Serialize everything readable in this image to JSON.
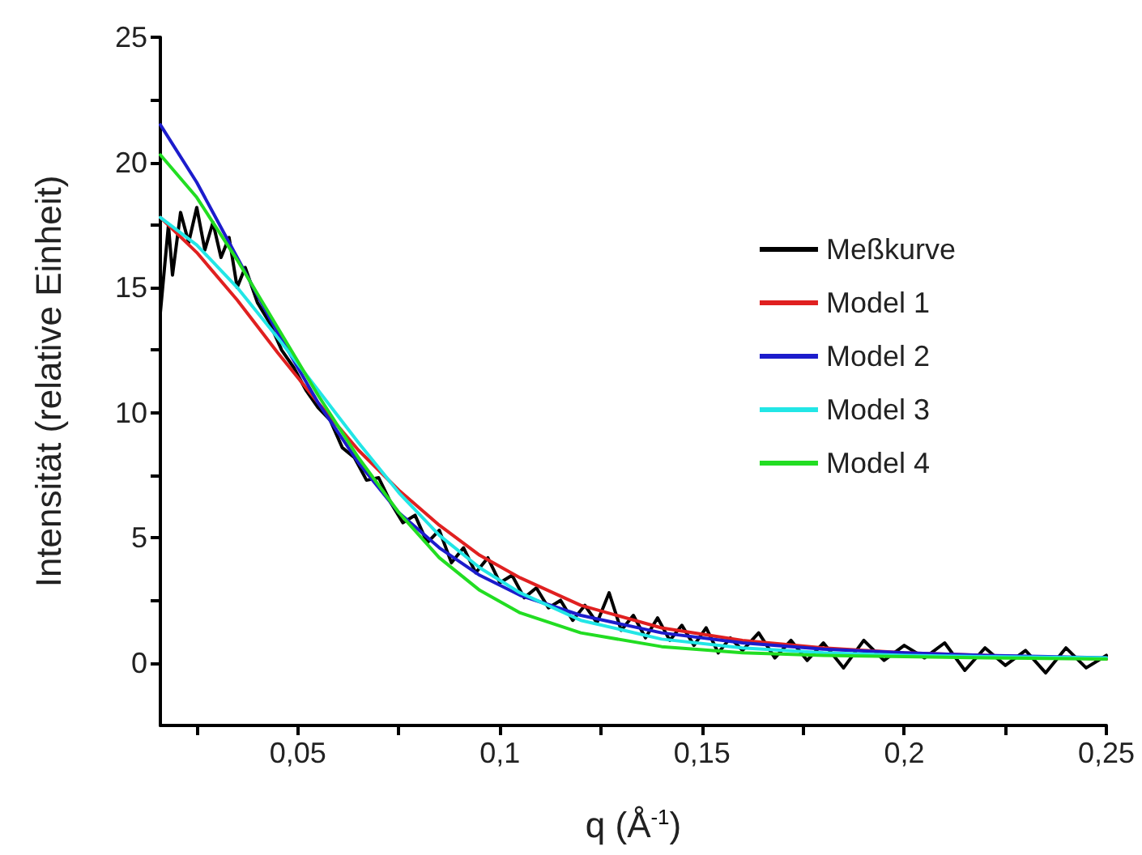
{
  "chart_data": {
    "type": "line",
    "xlabel": "q (Å$^{-1}$)",
    "ylabel": "Intensität (relative Einheit)",
    "xlim": [
      0.016,
      0.25
    ],
    "ylim": [
      -2.5,
      25
    ],
    "xticks": [
      {
        "value": 0.025,
        "label": null
      },
      {
        "value": 0.05,
        "label": "0,05"
      },
      {
        "value": 0.075,
        "label": null
      },
      {
        "value": 0.1,
        "label": "0,1"
      },
      {
        "value": 0.125,
        "label": null
      },
      {
        "value": 0.15,
        "label": "0,15"
      },
      {
        "value": 0.175,
        "label": null
      },
      {
        "value": 0.2,
        "label": "0,2"
      },
      {
        "value": 0.225,
        "label": null
      },
      {
        "value": 0.25,
        "label": "0,25"
      }
    ],
    "yticks": [
      0,
      {
        "value": 2.5,
        "label": null
      },
      5,
      {
        "value": 7.5,
        "label": null
      },
      10,
      {
        "value": 12.5,
        "label": null
      },
      15,
      {
        "value": 17.5,
        "label": null
      },
      20,
      {
        "value": 22.5,
        "label": null
      },
      25
    ],
    "grid": false,
    "legend": "right",
    "marker": "none",
    "line_style": "solid",
    "series": [
      {
        "name": "Meßkurve",
        "color": "#000000",
        "x": [
          0.016,
          0.018,
          0.019,
          0.021,
          0.023,
          0.025,
          0.027,
          0.029,
          0.031,
          0.033,
          0.035,
          0.037,
          0.04,
          0.043,
          0.046,
          0.049,
          0.052,
          0.055,
          0.058,
          0.061,
          0.064,
          0.067,
          0.07,
          0.073,
          0.076,
          0.079,
          0.082,
          0.085,
          0.088,
          0.091,
          0.094,
          0.097,
          0.1,
          0.103,
          0.106,
          0.109,
          0.112,
          0.115,
          0.118,
          0.121,
          0.124,
          0.127,
          0.13,
          0.133,
          0.136,
          0.139,
          0.142,
          0.145,
          0.148,
          0.151,
          0.154,
          0.157,
          0.16,
          0.164,
          0.168,
          0.172,
          0.176,
          0.18,
          0.185,
          0.19,
          0.195,
          0.2,
          0.205,
          0.21,
          0.215,
          0.22,
          0.225,
          0.23,
          0.235,
          0.24,
          0.245,
          0.25
        ],
        "values": [
          14.0,
          17.5,
          15.5,
          18.0,
          16.8,
          18.2,
          16.5,
          17.6,
          16.2,
          17.0,
          15.0,
          15.8,
          14.4,
          13.6,
          12.5,
          11.8,
          10.9,
          10.2,
          9.7,
          8.6,
          8.2,
          7.3,
          7.4,
          6.4,
          5.6,
          5.9,
          4.8,
          5.3,
          4.0,
          4.6,
          3.6,
          4.2,
          3.2,
          3.5,
          2.6,
          3.0,
          2.2,
          2.5,
          1.7,
          2.3,
          1.6,
          2.8,
          1.3,
          1.9,
          1.0,
          1.8,
          0.9,
          1.5,
          0.7,
          1.4,
          0.4,
          1.0,
          0.5,
          1.2,
          0.2,
          0.9,
          0.1,
          0.8,
          -0.2,
          0.9,
          0.1,
          0.7,
          0.2,
          0.8,
          -0.3,
          0.6,
          -0.1,
          0.5,
          -0.4,
          0.6,
          -0.2,
          0.3
        ]
      },
      {
        "name": "Model 1",
        "color": "#e02020",
        "x": [
          0.016,
          0.025,
          0.035,
          0.045,
          0.055,
          0.065,
          0.075,
          0.085,
          0.095,
          0.105,
          0.12,
          0.14,
          0.16,
          0.18,
          0.2,
          0.22,
          0.25
        ],
        "values": [
          17.8,
          16.4,
          14.5,
          12.4,
          10.4,
          8.5,
          6.9,
          5.5,
          4.3,
          3.4,
          2.3,
          1.4,
          0.9,
          0.6,
          0.4,
          0.3,
          0.15
        ]
      },
      {
        "name": "Model 2",
        "color": "#1c1ccc",
        "x": [
          0.016,
          0.025,
          0.035,
          0.045,
          0.055,
          0.065,
          0.075,
          0.085,
          0.095,
          0.105,
          0.12,
          0.14,
          0.16,
          0.18,
          0.2,
          0.22,
          0.25
        ],
        "values": [
          21.5,
          19.2,
          16.2,
          13.2,
          10.4,
          8.0,
          6.0,
          4.6,
          3.5,
          2.7,
          1.9,
          1.2,
          0.8,
          0.55,
          0.4,
          0.3,
          0.2
        ]
      },
      {
        "name": "Model 3",
        "color": "#22e6e6",
        "x": [
          0.016,
          0.025,
          0.035,
          0.045,
          0.055,
          0.065,
          0.075,
          0.085,
          0.095,
          0.105,
          0.12,
          0.14,
          0.16,
          0.18,
          0.2,
          0.22,
          0.25
        ],
        "values": [
          17.8,
          16.7,
          15.0,
          13.0,
          10.9,
          8.8,
          6.8,
          5.1,
          3.8,
          2.8,
          1.7,
          0.95,
          0.6,
          0.4,
          0.3,
          0.25,
          0.2
        ]
      },
      {
        "name": "Model 4",
        "color": "#22dd22",
        "x": [
          0.016,
          0.025,
          0.035,
          0.045,
          0.055,
          0.065,
          0.075,
          0.085,
          0.095,
          0.105,
          0.12,
          0.14,
          0.16,
          0.18,
          0.2,
          0.22,
          0.25
        ],
        "values": [
          20.3,
          18.6,
          16.1,
          13.4,
          10.7,
          8.2,
          6.0,
          4.2,
          2.9,
          2.0,
          1.2,
          0.65,
          0.4,
          0.3,
          0.25,
          0.2,
          0.15
        ]
      }
    ]
  }
}
